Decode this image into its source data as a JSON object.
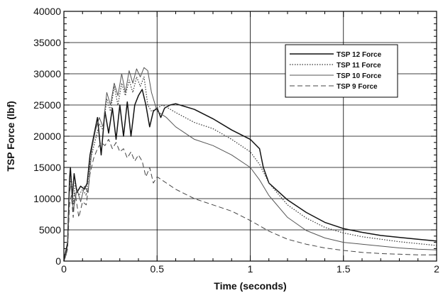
{
  "chart_data": {
    "type": "line",
    "title": "",
    "xlabel": "Time (seconds)",
    "ylabel": "TSP Force (lbf)",
    "xlim": [
      0,
      2
    ],
    "ylim": [
      0,
      40000
    ],
    "xticks": [
      0,
      0.5,
      1,
      1.5,
      2
    ],
    "xtick_labels": [
      "0",
      "0.5",
      "1",
      "1.5",
      "2"
    ],
    "yticks": [
      0,
      5000,
      10000,
      15000,
      20000,
      25000,
      30000,
      35000,
      40000
    ],
    "ytick_labels": [
      "0",
      "5000",
      "10000",
      "15000",
      "20000",
      "25000",
      "30000",
      "35000",
      "40000"
    ],
    "grid": true,
    "legend_position": "upper-right",
    "colors": {
      "series": "#333333",
      "axis": "#000000",
      "grid": "#000000"
    },
    "series": [
      {
        "name": "TSP 12 Force",
        "style": "solid",
        "points": [
          [
            0,
            0
          ],
          [
            0.01,
            1500
          ],
          [
            0.02,
            3000
          ],
          [
            0.03,
            13000
          ],
          [
            0.035,
            15000
          ],
          [
            0.045,
            10000
          ],
          [
            0.055,
            14000
          ],
          [
            0.07,
            11000
          ],
          [
            0.09,
            12000
          ],
          [
            0.11,
            11500
          ],
          [
            0.125,
            12500
          ],
          [
            0.14,
            17000
          ],
          [
            0.16,
            20000
          ],
          [
            0.18,
            23000
          ],
          [
            0.2,
            17000
          ],
          [
            0.22,
            24000
          ],
          [
            0.24,
            20500
          ],
          [
            0.26,
            24500
          ],
          [
            0.28,
            19500
          ],
          [
            0.3,
            25000
          ],
          [
            0.32,
            20000
          ],
          [
            0.34,
            25500
          ],
          [
            0.36,
            20000
          ],
          [
            0.38,
            25000
          ],
          [
            0.4,
            26500
          ],
          [
            0.42,
            27500
          ],
          [
            0.44,
            25000
          ],
          [
            0.46,
            21500
          ],
          [
            0.48,
            24000
          ],
          [
            0.5,
            24500
          ],
          [
            0.52,
            23000
          ],
          [
            0.54,
            24500
          ],
          [
            0.57,
            25000
          ],
          [
            0.6,
            25200
          ],
          [
            0.7,
            24300
          ],
          [
            0.8,
            22800
          ],
          [
            0.9,
            21000
          ],
          [
            1.0,
            19500
          ],
          [
            1.05,
            18000
          ],
          [
            1.07,
            15000
          ],
          [
            1.1,
            12500
          ],
          [
            1.2,
            9800
          ],
          [
            1.3,
            7800
          ],
          [
            1.4,
            6200
          ],
          [
            1.5,
            5200
          ],
          [
            1.6,
            4600
          ],
          [
            1.7,
            4100
          ],
          [
            1.8,
            3800
          ],
          [
            1.9,
            3500
          ],
          [
            2.0,
            3200
          ]
        ]
      },
      {
        "name": "TSP 11 Force",
        "style": "dotted",
        "points": [
          [
            0,
            0
          ],
          [
            0.01,
            1200
          ],
          [
            0.02,
            2500
          ],
          [
            0.03,
            12000
          ],
          [
            0.04,
            13500
          ],
          [
            0.05,
            9000
          ],
          [
            0.06,
            12500
          ],
          [
            0.08,
            10500
          ],
          [
            0.1,
            11500
          ],
          [
            0.12,
            10500
          ],
          [
            0.14,
            16000
          ],
          [
            0.17,
            19500
          ],
          [
            0.19,
            22000
          ],
          [
            0.21,
            21000
          ],
          [
            0.23,
            26000
          ],
          [
            0.25,
            24000
          ],
          [
            0.27,
            28000
          ],
          [
            0.29,
            25000
          ],
          [
            0.31,
            28500
          ],
          [
            0.33,
            26500
          ],
          [
            0.35,
            29000
          ],
          [
            0.37,
            27000
          ],
          [
            0.39,
            29500
          ],
          [
            0.41,
            28000
          ],
          [
            0.43,
            29500
          ],
          [
            0.45,
            25000
          ],
          [
            0.47,
            24000
          ],
          [
            0.5,
            24500
          ],
          [
            0.53,
            25000
          ],
          [
            0.56,
            24500
          ],
          [
            0.6,
            23800
          ],
          [
            0.7,
            22200
          ],
          [
            0.8,
            21200
          ],
          [
            0.9,
            19500
          ],
          [
            1.0,
            17500
          ],
          [
            1.05,
            15500
          ],
          [
            1.1,
            12500
          ],
          [
            1.2,
            9000
          ],
          [
            1.3,
            6900
          ],
          [
            1.4,
            5400
          ],
          [
            1.5,
            4500
          ],
          [
            1.6,
            3900
          ],
          [
            1.7,
            3500
          ],
          [
            1.8,
            3100
          ],
          [
            1.9,
            2800
          ],
          [
            2.0,
            2500
          ]
        ]
      },
      {
        "name": "TSP 10 Force",
        "style": "solid-thin",
        "points": [
          [
            0,
            0
          ],
          [
            0.01,
            1000
          ],
          [
            0.02,
            2500
          ],
          [
            0.03,
            11000
          ],
          [
            0.04,
            12500
          ],
          [
            0.05,
            8000
          ],
          [
            0.07,
            11500
          ],
          [
            0.09,
            9500
          ],
          [
            0.11,
            12000
          ],
          [
            0.13,
            11000
          ],
          [
            0.15,
            18000
          ],
          [
            0.17,
            21000
          ],
          [
            0.19,
            23000
          ],
          [
            0.21,
            21500
          ],
          [
            0.23,
            27000
          ],
          [
            0.25,
            25000
          ],
          [
            0.27,
            28500
          ],
          [
            0.29,
            26500
          ],
          [
            0.31,
            30000
          ],
          [
            0.33,
            27000
          ],
          [
            0.35,
            30500
          ],
          [
            0.37,
            28500
          ],
          [
            0.39,
            30800
          ],
          [
            0.41,
            29500
          ],
          [
            0.43,
            31000
          ],
          [
            0.45,
            30500
          ],
          [
            0.47,
            27000
          ],
          [
            0.5,
            24000
          ],
          [
            0.55,
            23000
          ],
          [
            0.6,
            21500
          ],
          [
            0.7,
            19500
          ],
          [
            0.8,
            18500
          ],
          [
            0.9,
            17000
          ],
          [
            1.0,
            15000
          ],
          [
            1.05,
            13000
          ],
          [
            1.1,
            10500
          ],
          [
            1.2,
            7000
          ],
          [
            1.3,
            4900
          ],
          [
            1.4,
            3700
          ],
          [
            1.5,
            3000
          ],
          [
            1.6,
            2700
          ],
          [
            1.7,
            2400
          ],
          [
            1.8,
            2100
          ],
          [
            1.9,
            1900
          ],
          [
            2.0,
            1800
          ]
        ]
      },
      {
        "name": "TSP 9 Force",
        "style": "dashed",
        "points": [
          [
            0,
            0
          ],
          [
            0.01,
            800
          ],
          [
            0.02,
            2000
          ],
          [
            0.03,
            9000
          ],
          [
            0.04,
            10500
          ],
          [
            0.05,
            7000
          ],
          [
            0.06,
            11000
          ],
          [
            0.08,
            7000
          ],
          [
            0.1,
            9500
          ],
          [
            0.12,
            9000
          ],
          [
            0.14,
            14000
          ],
          [
            0.16,
            16500
          ],
          [
            0.18,
            18000
          ],
          [
            0.2,
            19000
          ],
          [
            0.22,
            18500
          ],
          [
            0.24,
            19500
          ],
          [
            0.26,
            18000
          ],
          [
            0.28,
            19000
          ],
          [
            0.3,
            17500
          ],
          [
            0.32,
            18000
          ],
          [
            0.34,
            16500
          ],
          [
            0.36,
            17500
          ],
          [
            0.38,
            16000
          ],
          [
            0.4,
            17000
          ],
          [
            0.42,
            16000
          ],
          [
            0.44,
            13500
          ],
          [
            0.46,
            15000
          ],
          [
            0.48,
            12500
          ],
          [
            0.5,
            13500
          ],
          [
            0.55,
            12500
          ],
          [
            0.6,
            11500
          ],
          [
            0.7,
            10000
          ],
          [
            0.8,
            9000
          ],
          [
            0.9,
            8000
          ],
          [
            1.0,
            6500
          ],
          [
            1.1,
            4800
          ],
          [
            1.2,
            3500
          ],
          [
            1.3,
            2700
          ],
          [
            1.4,
            2100
          ],
          [
            1.5,
            1700
          ],
          [
            1.6,
            1400
          ],
          [
            1.7,
            1200
          ],
          [
            1.8,
            1100
          ],
          [
            1.9,
            1000
          ],
          [
            2.0,
            1000
          ]
        ]
      }
    ]
  }
}
